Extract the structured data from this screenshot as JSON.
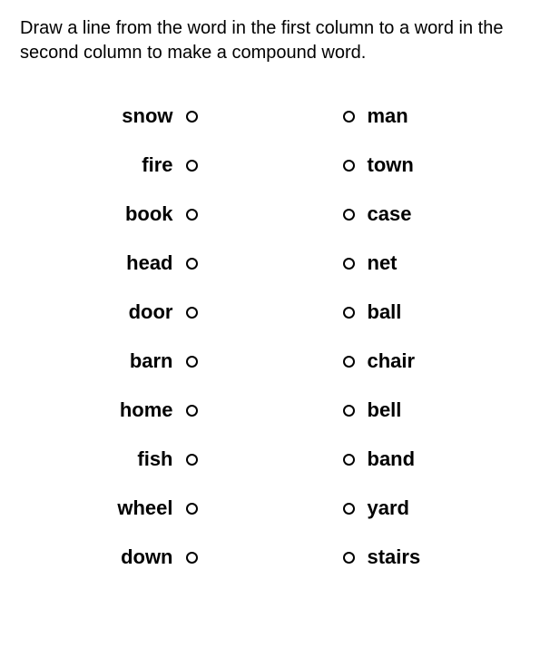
{
  "instructions": "Draw a line from the word in the first column to a word in the second column to make a compound word.",
  "left_words": [
    "snow",
    "fire",
    "book",
    "head",
    "door",
    "barn",
    "home",
    "fish",
    "wheel",
    "down"
  ],
  "right_words": [
    "man",
    "town",
    "case",
    "net",
    "ball",
    "chair",
    "bell",
    "band",
    "yard",
    "stairs"
  ],
  "styling": {
    "background_color": "#ffffff",
    "text_color": "#000000",
    "instruction_fontsize": 20,
    "word_fontsize": 22,
    "word_fontweight": 700,
    "row_gap": 26,
    "column_gap": 160,
    "dot_diameter": 13,
    "dot_border_width": 2.5,
    "dot_border_color": "#000000",
    "dot_fill_color": "#ffffff"
  }
}
